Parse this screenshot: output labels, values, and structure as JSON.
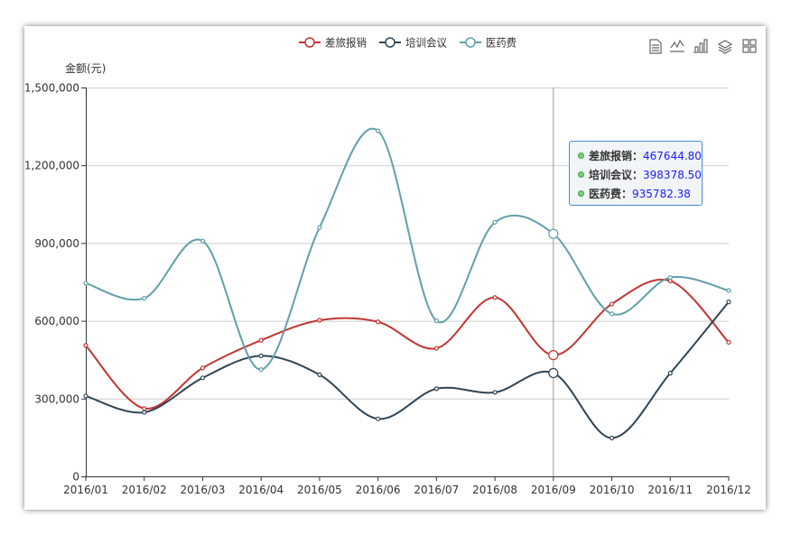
{
  "chart_data": {
    "type": "line",
    "categories": [
      "2016/01",
      "2016/02",
      "2016/03",
      "2016/04",
      "2016/05",
      "2016/06",
      "2016/07",
      "2016/08",
      "2016/09",
      "2016/10",
      "2016/11",
      "2016/12"
    ],
    "series": [
      {
        "name": "差旅报销",
        "color": "#c23531",
        "values": [
          505000,
          262000,
          418000,
          525000,
          602000,
          596000,
          494000,
          690000,
          467644.8,
          665000,
          754000,
          517000
        ]
      },
      {
        "name": "培训会议",
        "color": "#2f4554",
        "values": [
          310000,
          247000,
          380000,
          465000,
          392000,
          222000,
          338000,
          324000,
          398378.5,
          148000,
          398000,
          673000
        ]
      },
      {
        "name": "医药费",
        "color": "#61a0a8",
        "values": [
          745000,
          687000,
          908000,
          412000,
          960000,
          1333000,
          600000,
          980000,
          935782.38,
          627000,
          767000,
          717000
        ]
      }
    ],
    "ylabel": "金额(元)",
    "ylim": [
      0,
      1500000
    ],
    "yticks": [
      0,
      300000,
      600000,
      900000,
      1200000,
      1500000
    ],
    "ytick_labels": [
      "0",
      "300,000",
      "600,000",
      "900,000",
      "1,200,000",
      "1,500,000"
    ],
    "grid": true,
    "legend_position": "top-center",
    "smooth": true,
    "highlighted_category": "2016/09"
  },
  "tooltip": {
    "rows": [
      {
        "name": "差旅报销",
        "value": "467644.80"
      },
      {
        "name": "培训会议",
        "value": "398378.50"
      },
      {
        "name": "医药费",
        "value": "935782.38"
      }
    ]
  },
  "toolbox": [
    "data-view-icon",
    "line-chart-icon",
    "bar-chart-icon",
    "stack-icon",
    "tiled-icon"
  ]
}
